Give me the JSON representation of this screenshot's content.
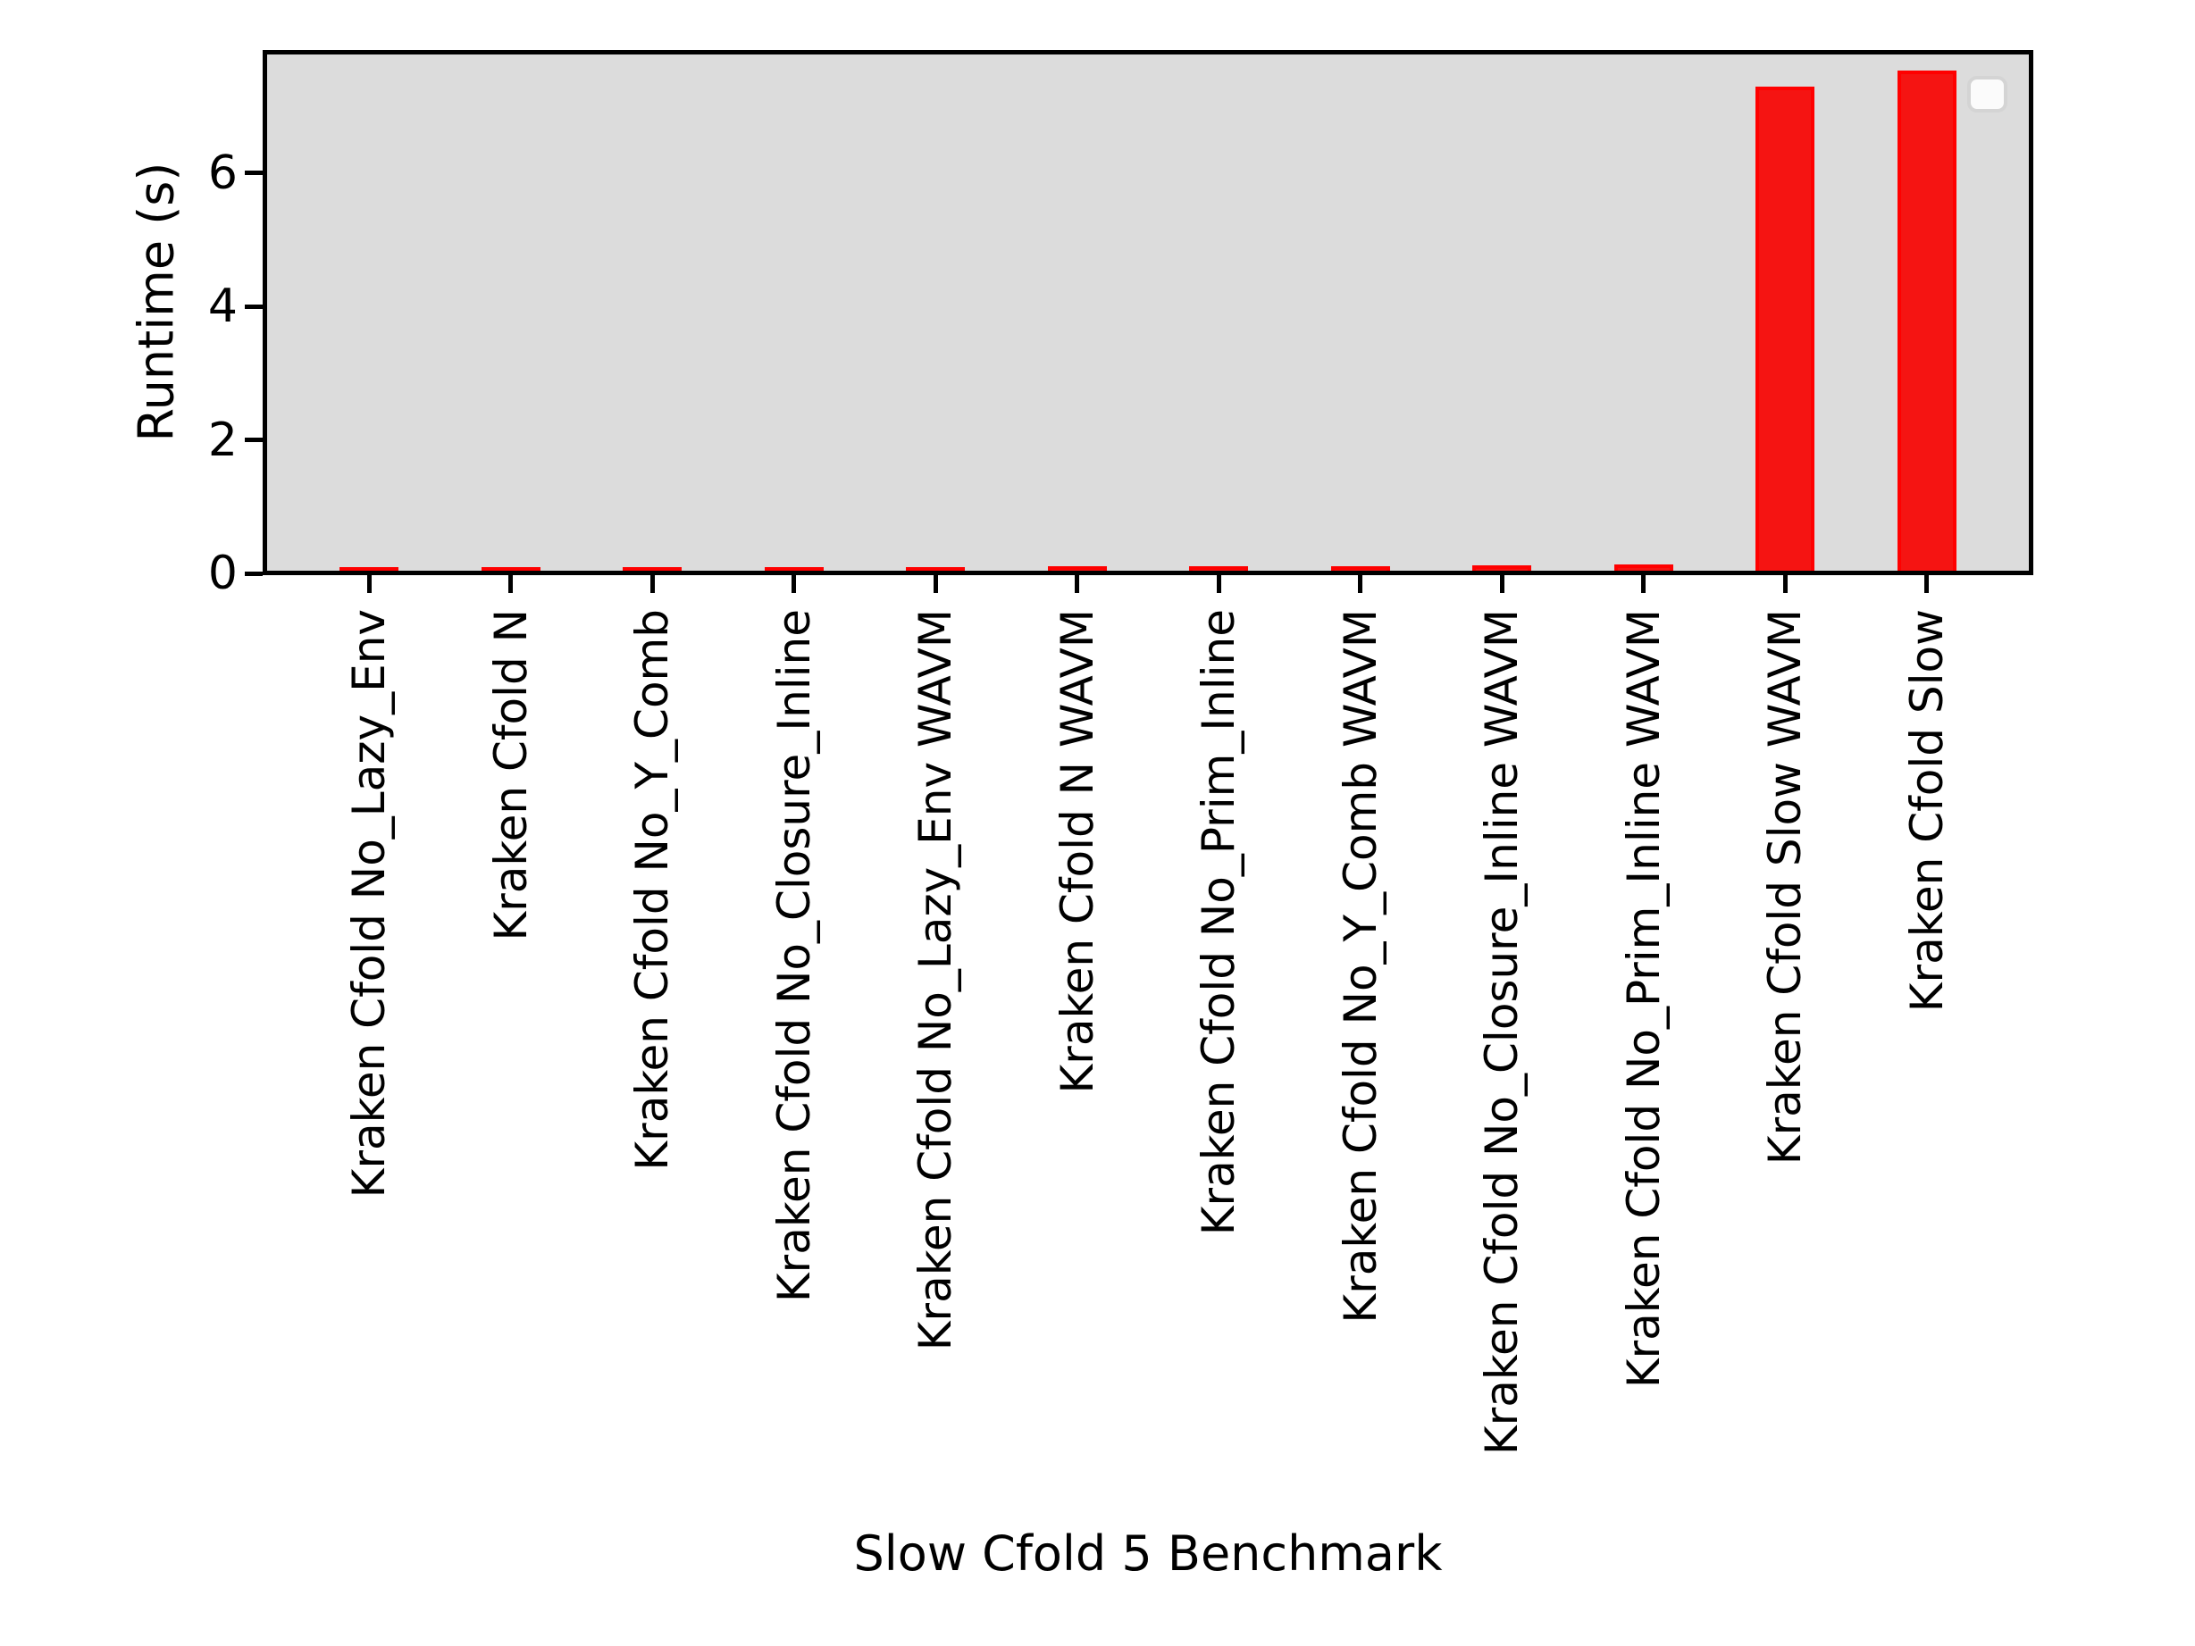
{
  "figure": {
    "background_color": "#ffffff",
    "plot_background_color": "#dcdcdc",
    "bar_fill_color": "#f51412",
    "bar_edge_color": "#ff0000",
    "axis_color": "#000000",
    "legend_background_color": "#fbfbfb",
    "legend_border_color": "#d4d4d4"
  },
  "chart_data": {
    "type": "bar",
    "title": "",
    "xlabel": "Slow Cfold 5 Benchmark",
    "ylabel": "Runtime (s)",
    "categories": [
      "Kraken Cfold No_Lazy_Env",
      "Kraken Cfold N",
      "Kraken Cfold No_Y_Comb",
      "Kraken Cfold No_Closure_Inline",
      "Kraken Cfold No_Lazy_Env WAVM",
      "Kraken Cfold N WAVM",
      "Kraken Cfold No_Prim_Inline",
      "Kraken Cfold No_Y_Comb WAVM",
      "Kraken Cfold No_Closure_Inline WAVM",
      "Kraken Cfold No_Prim_Inline WAVM",
      "Kraken Cfold Slow WAVM",
      "Kraken Cfold Slow"
    ],
    "values": [
      0.05,
      0.05,
      0.05,
      0.06,
      0.06,
      0.07,
      0.07,
      0.07,
      0.08,
      0.1,
      7.25,
      7.5
    ],
    "yticks": [
      0,
      2,
      4,
      6
    ],
    "ylim": [
      0,
      7.87
    ],
    "xtick_rotation_deg": 90,
    "grid": false,
    "legend": {
      "position": "upper right",
      "entries": []
    }
  }
}
